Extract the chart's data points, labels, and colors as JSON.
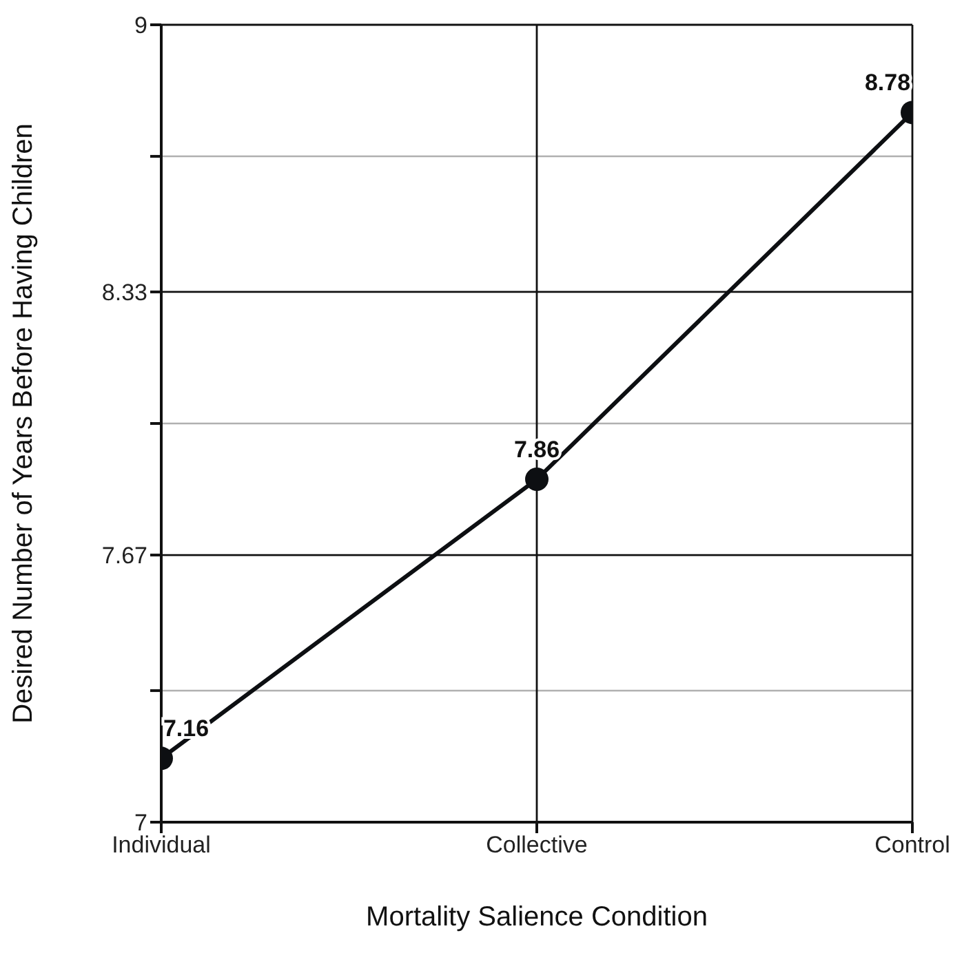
{
  "chart_data": {
    "type": "line",
    "xlabel": "Mortality Salience Condition",
    "ylabel": "Desired Number of Years Before Having Children",
    "categories": [
      "Individual",
      "Collective",
      "Control"
    ],
    "series": [
      {
        "color": "#0d0f12",
        "values": [
          7.16,
          7.86,
          8.78
        ]
      }
    ],
    "ylim": [
      7,
      9
    ],
    "yticks": [
      7,
      {
        "value": 7.33,
        "label": null
      },
      7.67,
      {
        "value": 8,
        "label": null
      },
      8.33,
      {
        "value": 8.67,
        "label": null
      },
      9
    ],
    "grid": true,
    "marker": "circle",
    "line_style": "solid",
    "data_labels": true
  }
}
